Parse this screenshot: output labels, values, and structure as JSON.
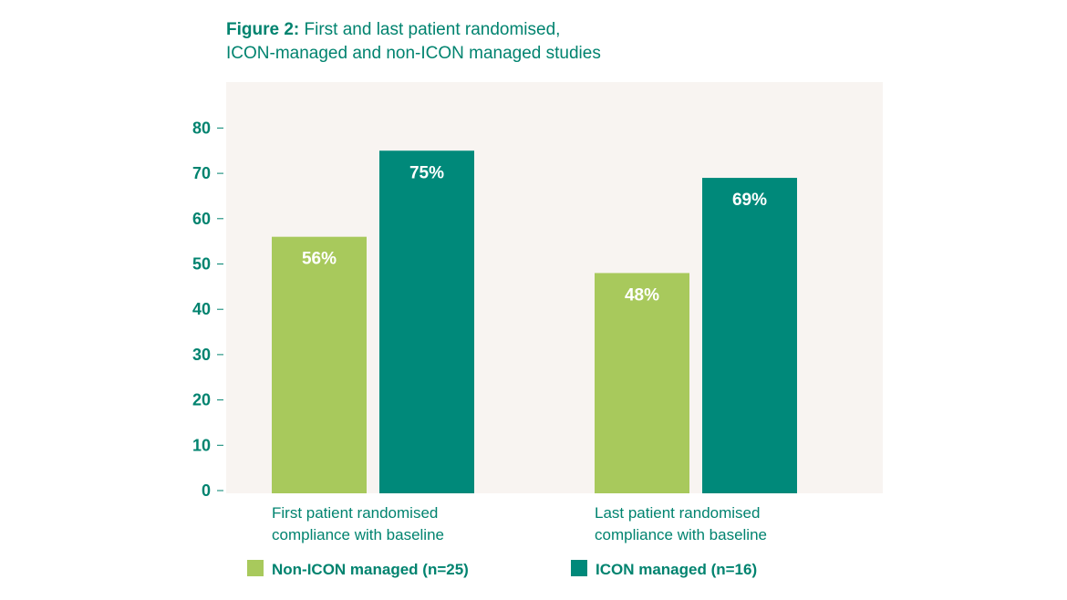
{
  "chart_data": {
    "type": "bar",
    "title_prefix": "Figure 2:",
    "title_line1": "First and last patient randomised,",
    "title_line2": "ICON-managed and non-ICON managed studies",
    "categories": [
      [
        "First patient randomised",
        "compliance with baseline"
      ],
      [
        "Last patient randomised",
        "compliance with baseline"
      ]
    ],
    "series": [
      {
        "name": "Non-ICON managed (n=25)",
        "values": [
          56,
          48
        ],
        "labels": [
          "56%",
          "48%"
        ],
        "color": "#a8c95c"
      },
      {
        "name": "ICON managed (n=16)",
        "values": [
          75,
          69
        ],
        "labels": [
          "75%",
          "69%"
        ],
        "color": "#00897a"
      }
    ],
    "yticks": [
      0,
      10,
      20,
      30,
      40,
      50,
      60,
      70,
      80
    ],
    "ylim": [
      0,
      90
    ],
    "grid": false,
    "legend_position": "bottom",
    "plot_background": "#f8f4f1",
    "text_color": "#00836f"
  }
}
